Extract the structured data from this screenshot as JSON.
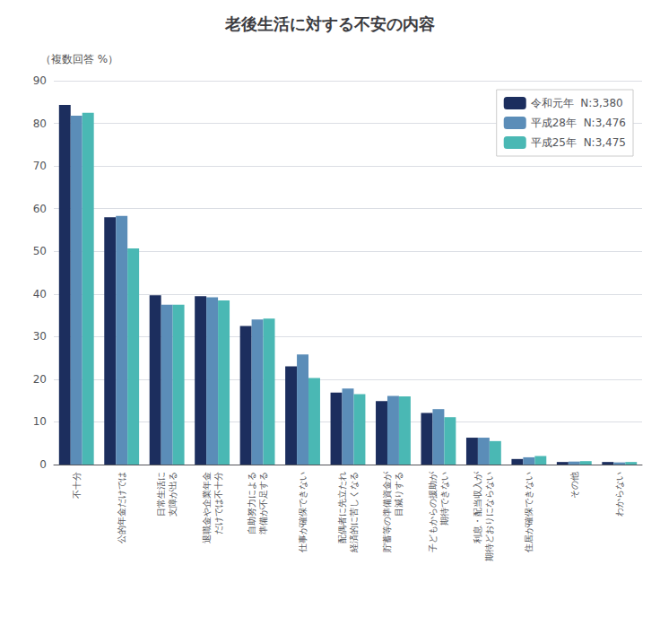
{
  "chart_data": {
    "type": "bar",
    "title": "老後生活に対する不安の内容",
    "subtitle": "（複数回答 %）",
    "categories": [
      "不十分",
      "公的年金だけでは",
      "日常生活に\n支障が出る",
      "退職金や企業年金\nだけでは不十分",
      "自助努力による\n準備が不足する",
      "仕事が確保できない",
      "配偶者に先立たれ\n経済的に苦しくなる",
      "貯蓄等の準備資金が\n目減りする",
      "子どもからの援助が\n期待できない",
      "利息・配当収入が\n期待どおりにならない",
      "住居が確保できない",
      "その他",
      "わからない"
    ],
    "series": [
      {
        "name": "令和元年  N:3,380",
        "color": "#1c2e5e",
        "values": [
          84.3,
          58.0,
          39.7,
          39.5,
          32.5,
          23.0,
          16.9,
          14.9,
          12.1,
          6.3,
          1.3,
          0.6,
          0.6
        ]
      },
      {
        "name": "平成28年  N:3,476",
        "color": "#5b8db8",
        "values": [
          81.8,
          58.3,
          37.5,
          39.2,
          34.0,
          25.8,
          17.8,
          16.1,
          13.0,
          6.3,
          1.7,
          0.7,
          0.5
        ]
      },
      {
        "name": "平成25年  N:3,475",
        "color": "#4ab8b4",
        "values": [
          82.5,
          50.7,
          37.5,
          38.5,
          34.2,
          20.3,
          16.5,
          16.0,
          11.1,
          5.5,
          2.0,
          0.8,
          0.6
        ]
      }
    ],
    "ylim": [
      0,
      90
    ],
    "yticks": [
      0,
      10,
      20,
      30,
      40,
      50,
      60,
      70,
      80,
      90
    ],
    "grid": true,
    "legend": "upper right"
  }
}
